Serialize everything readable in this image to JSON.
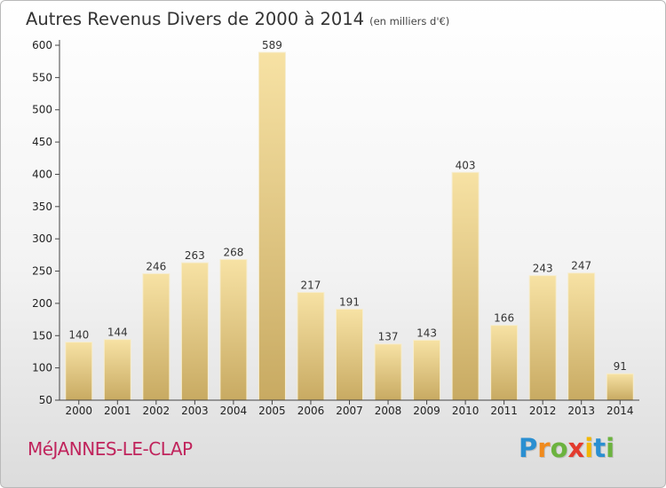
{
  "chart_data": {
    "type": "bar",
    "title": "Autres Revenus Divers de 2000 à 2014",
    "subtitle": "(en milliers d'€)",
    "categories": [
      "2000",
      "2001",
      "2002",
      "2003",
      "2004",
      "2005",
      "2006",
      "2007",
      "2008",
      "2009",
      "2010",
      "2011",
      "2012",
      "2013",
      "2014"
    ],
    "values": [
      140,
      144,
      246,
      263,
      268,
      589,
      217,
      191,
      137,
      143,
      403,
      166,
      243,
      247,
      91
    ],
    "ylim": [
      50,
      600
    ],
    "yticks": [
      50,
      100,
      150,
      200,
      250,
      300,
      350,
      400,
      450,
      500,
      550,
      600
    ],
    "xlabel": "",
    "ylabel": "",
    "grid": false,
    "colors": {
      "bar_light": "#f7e2a4",
      "bar_dark": "#c8aa62",
      "axis": "#444444"
    }
  },
  "footer": {
    "commune": "MéJANNES-LE-CLAP",
    "logo_letters": [
      {
        "ch": "P",
        "color": "#2a8fd1"
      },
      {
        "ch": "r",
        "color": "#f08a1c"
      },
      {
        "ch": "o",
        "color": "#6cb33f"
      },
      {
        "ch": "x",
        "color": "#e33b2e"
      },
      {
        "ch": "i",
        "color": "#f2b705"
      },
      {
        "ch": "t",
        "color": "#2a8fd1"
      },
      {
        "ch": "i",
        "color": "#6cb33f"
      }
    ]
  }
}
